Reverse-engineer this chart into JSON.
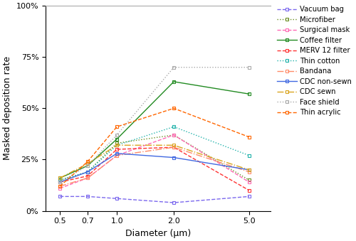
{
  "x": [
    0.5,
    0.7,
    1.0,
    2.0,
    5.0
  ],
  "series": {
    "Vacuum bag": [
      0.07,
      0.07,
      0.06,
      0.04,
      0.07
    ],
    "Microfiber": [
      0.15,
      0.19,
      0.33,
      0.37,
      0.15
    ],
    "Surgical mask": [
      0.11,
      0.16,
      0.27,
      0.37,
      0.14
    ],
    "Coffee filter": [
      0.16,
      0.22,
      0.35,
      0.63,
      0.57
    ],
    "MERV 12 filter": [
      0.14,
      0.17,
      0.3,
      0.31,
      0.1
    ],
    "Thin cotton": [
      0.15,
      0.19,
      0.32,
      0.41,
      0.27
    ],
    "Bandana": [
      0.12,
      0.16,
      0.27,
      0.31,
      0.19
    ],
    "CDC non-sewn": [
      0.14,
      0.19,
      0.28,
      0.26,
      0.2
    ],
    "CDC sewn": [
      0.16,
      0.23,
      0.32,
      0.32,
      0.2
    ],
    "Face shield": [
      0.14,
      0.22,
      0.37,
      0.7,
      0.7
    ],
    "Thin acrylic": [
      0.12,
      0.24,
      0.41,
      0.5,
      0.36
    ]
  },
  "colors": {
    "Vacuum bag": "#7B68EE",
    "Microfiber": "#6B8E23",
    "Surgical mask": "#FF69B4",
    "Coffee filter": "#228B22",
    "MERV 12 filter": "#FF3333",
    "Thin cotton": "#20B2AA",
    "Bandana": "#FF8C69",
    "CDC non-sewn": "#4169E1",
    "CDC sewn": "#DAA520",
    "Face shield": "#AAAAAA",
    "Thin acrylic": "#FF6600"
  },
  "linestyles": {
    "Vacuum bag": "--",
    "Microfiber": ":",
    "Surgical mask": "--",
    "Coffee filter": "-",
    "MERV 12 filter": "--",
    "Thin cotton": ":",
    "Bandana": "-.",
    "CDC non-sewn": "-",
    "CDC sewn": "-.",
    "Face shield": ":",
    "Thin acrylic": "--"
  },
  "markers": {
    "Vacuum bag": "s",
    "Microfiber": "s",
    "Surgical mask": "s",
    "Coffee filter": "s",
    "MERV 12 filter": "s",
    "Thin cotton": "s",
    "Bandana": "s",
    "CDC non-sewn": "s",
    "CDC sewn": "s",
    "Face shield": "s",
    "Thin acrylic": "s"
  },
  "xlabel": "Diameter (μm)",
  "ylabel": "Masked deposition rate",
  "ylim": [
    0.0,
    1.0
  ],
  "yticks": [
    0.0,
    0.25,
    0.5,
    0.75,
    1.0
  ],
  "yticklabels": [
    "0%",
    "25%",
    "50%",
    "75%",
    "100%"
  ],
  "xticks": [
    0.5,
    0.7,
    1.0,
    2.0,
    5.0
  ],
  "xticklabels": [
    "0.5",
    "0.7",
    "1.0",
    "2.0",
    "5.0"
  ]
}
